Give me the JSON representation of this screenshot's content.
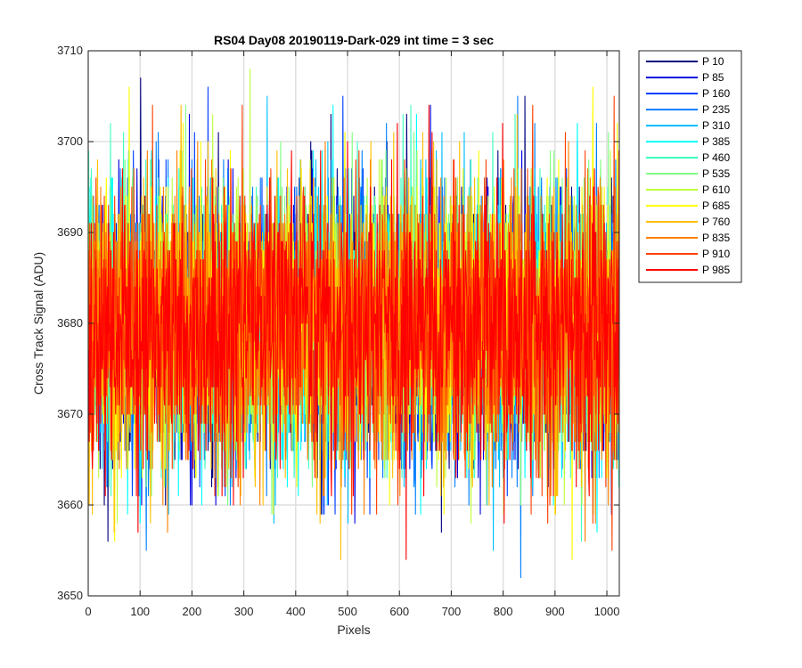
{
  "chart_data": {
    "type": "line",
    "title": "RS04 Day08 20190119-Dark-029 int time = 3 sec",
    "xlabel": "Pixels",
    "ylabel": "Cross Track Signal (ADU)",
    "xlim": [
      0,
      1024
    ],
    "ylim": [
      3650,
      3710
    ],
    "xticks": [
      0,
      100,
      200,
      300,
      400,
      500,
      600,
      700,
      800,
      900,
      1000
    ],
    "yticks": [
      3650,
      3660,
      3670,
      3680,
      3690,
      3700,
      3710
    ],
    "grid": true,
    "legend_position": "outside-top-right",
    "mean_signal": 3679.5,
    "noise_std": 7.5,
    "points_per_series": 1024,
    "series": [
      {
        "name": "P 10",
        "color": "#00007f"
      },
      {
        "name": "P 85",
        "color": "#0000e0"
      },
      {
        "name": "P 160",
        "color": "#0040ff"
      },
      {
        "name": "P 235",
        "color": "#0080ff"
      },
      {
        "name": "P 310",
        "color": "#00bfff"
      },
      {
        "name": "P 385",
        "color": "#00ffff"
      },
      {
        "name": "P 460",
        "color": "#40ffbf"
      },
      {
        "name": "P 535",
        "color": "#80ff80"
      },
      {
        "name": "P 610",
        "color": "#bfff40"
      },
      {
        "name": "P 685",
        "color": "#ffff00"
      },
      {
        "name": "P 760",
        "color": "#ffbf00"
      },
      {
        "name": "P 835",
        "color": "#ff8000"
      },
      {
        "name": "P 910",
        "color": "#ff4000"
      },
      {
        "name": "P 985",
        "color": "#ff0000"
      }
    ]
  }
}
